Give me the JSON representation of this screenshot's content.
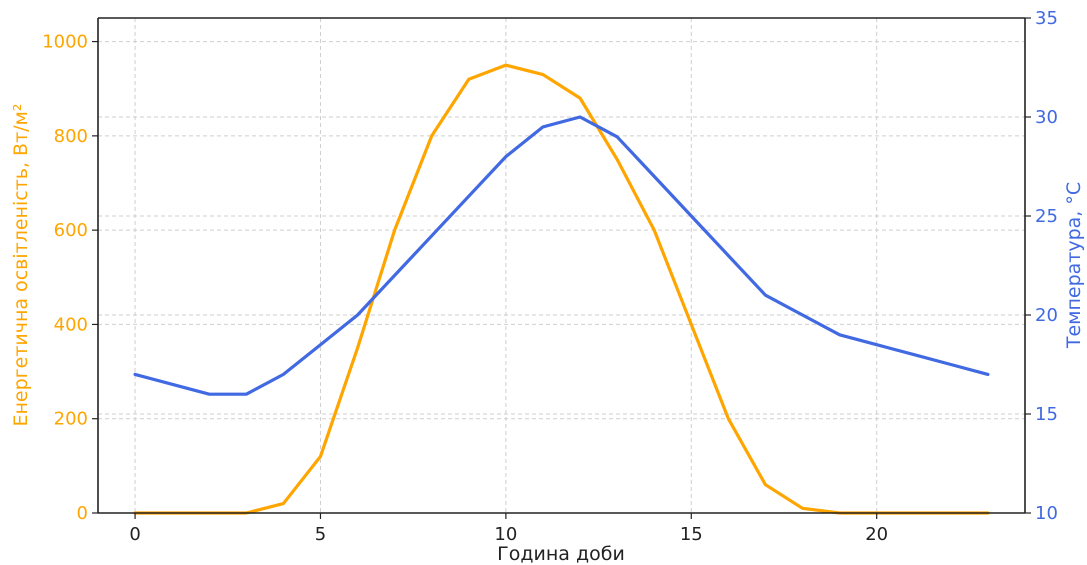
{
  "chart_data": {
    "type": "line",
    "xlabel": "Година доби",
    "ylabel_left": "Енергетична освітленість, Вт/м²",
    "ylabel_right": "Температура, °C",
    "x": [
      0,
      1,
      2,
      3,
      4,
      5,
      6,
      7,
      8,
      9,
      10,
      11,
      12,
      13,
      14,
      15,
      16,
      17,
      18,
      19,
      20,
      21,
      22,
      23
    ],
    "xlim": [
      -1,
      24
    ],
    "x_ticks": [
      0,
      5,
      10,
      15,
      20
    ],
    "ylim_left": [
      0,
      1050
    ],
    "y_ticks_left": [
      0,
      200,
      400,
      600,
      800,
      1000
    ],
    "ylim_right": [
      10,
      35
    ],
    "y_ticks_right": [
      10,
      15,
      20,
      25,
      30,
      35
    ],
    "grid": true,
    "series": [
      {
        "axis": "left",
        "color": "#FFA500",
        "values": [
          0,
          0,
          0,
          0,
          20,
          120,
          350,
          600,
          800,
          920,
          950,
          930,
          880,
          750,
          600,
          400,
          200,
          60,
          10,
          0,
          0,
          0,
          0,
          0
        ]
      },
      {
        "axis": "right",
        "color": "#4169E1",
        "values": [
          17,
          16.5,
          16,
          16,
          17,
          18.5,
          20,
          22,
          24,
          26,
          28,
          29.5,
          30,
          29,
          27,
          25,
          23,
          21,
          20,
          19,
          18.5,
          18,
          17.5,
          17
        ]
      }
    ],
    "colors": {
      "left_axis": "#FFA500",
      "right_axis": "#4169E1",
      "text": "#222222"
    }
  }
}
